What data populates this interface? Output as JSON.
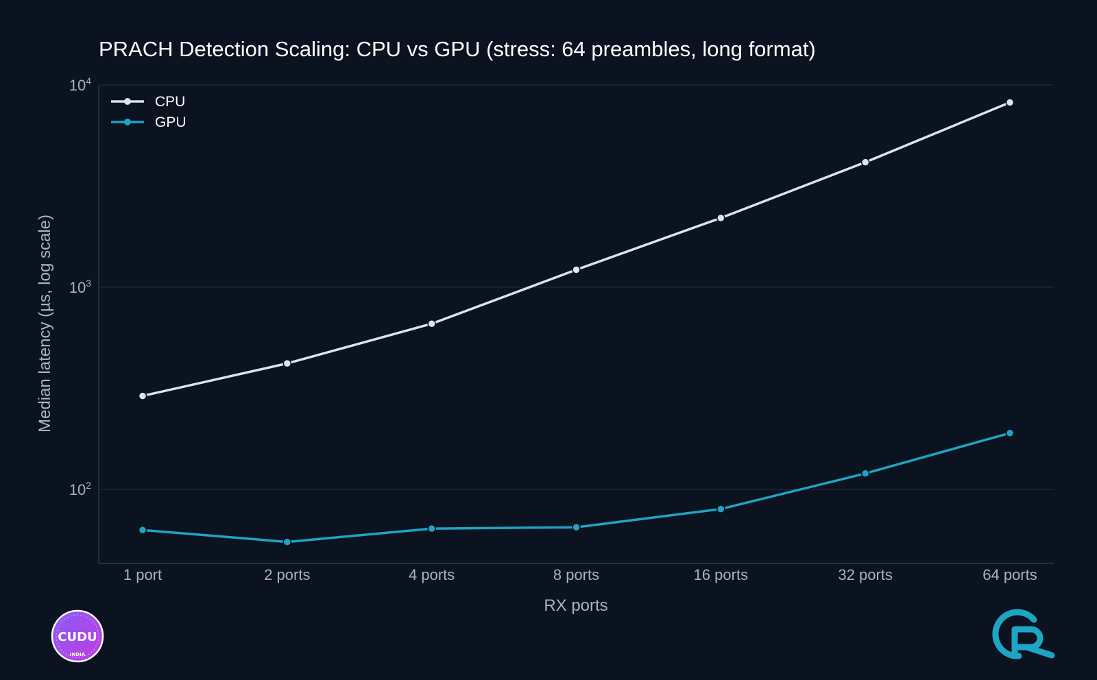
{
  "chart_data": {
    "type": "line",
    "title": "PRACH Detection Scaling: CPU vs GPU (stress: 64 preambles, long format)",
    "xlabel": "RX ports",
    "ylabel": "Median latency (µs, log scale)",
    "yscale": "log",
    "ylim": [
      45,
      10000
    ],
    "y_tick_labels": [
      {
        "value": 100,
        "base": "10",
        "exp": "2"
      },
      {
        "value": 1000,
        "base": "10",
        "exp": "3"
      },
      {
        "value": 10000,
        "base": "10",
        "exp": "4"
      }
    ],
    "categories": [
      "1 port",
      "2 ports",
      "4 ports",
      "8 ports",
      "16 ports",
      "32 ports",
      "64 ports"
    ],
    "grid": true,
    "legend": "top-left",
    "series": [
      {
        "name": "CPU",
        "color": "#d6e6f0",
        "values": [
          290,
          420,
          660,
          1220,
          2200,
          4150,
          8200
        ]
      },
      {
        "name": "GPU",
        "color": "#1ea5c4",
        "values": [
          63,
          55,
          64,
          65,
          80,
          120,
          190
        ]
      }
    ]
  },
  "logos": {
    "left": {
      "text": "CUDU",
      "subtext": "INDIA",
      "icon": "cudu-badge-icon"
    },
    "right": {
      "icon": "cr-logo-icon",
      "color": "#1ea5c4"
    }
  }
}
